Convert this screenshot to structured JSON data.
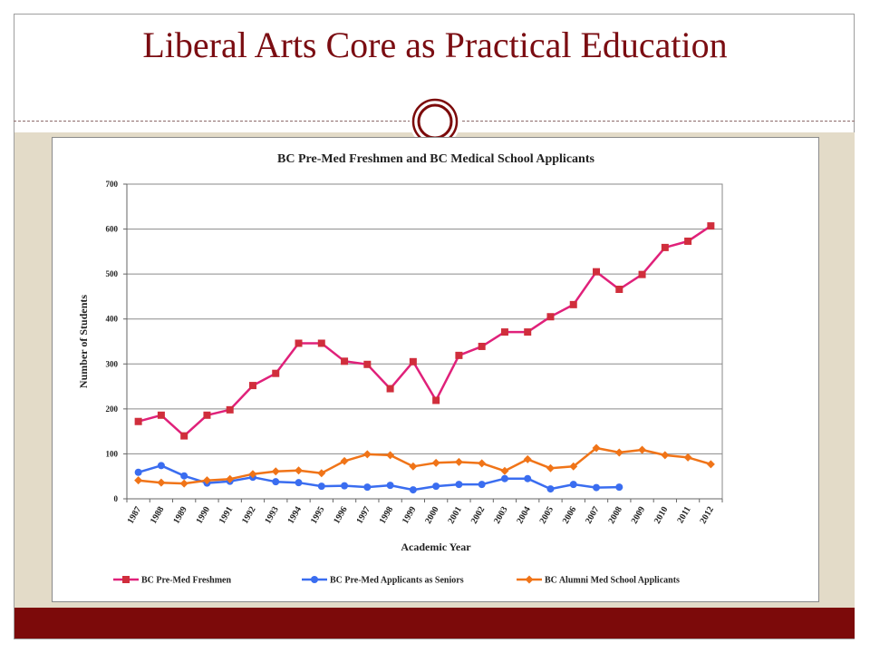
{
  "slide": {
    "title": "Liberal Arts Core as Practical Education"
  },
  "colors": {
    "title": "#7b0d12",
    "band": "#e3dbc8",
    "bar": "#7c0a0a",
    "series1": "#e0217a",
    "series1_marker": "#d02e3c",
    "series2": "#3a6df0",
    "series3": "#f07418"
  },
  "chart_data": {
    "type": "line",
    "title": "BC Pre-Med Freshmen and BC Medical School Applicants",
    "xlabel": "Academic Year",
    "ylabel": "Number of Students",
    "ylim": [
      0,
      700
    ],
    "yticks": [
      0,
      100,
      200,
      300,
      400,
      500,
      600,
      700
    ],
    "grid": true,
    "legend": "bottom",
    "categories": [
      "1987",
      "1988",
      "1989",
      "1990",
      "1991",
      "1992",
      "1993",
      "1994",
      "1995",
      "1996",
      "1997",
      "1998",
      "1999",
      "2000",
      "2001",
      "2002",
      "2003",
      "2004",
      "2005",
      "2006",
      "2007",
      "2008",
      "2009",
      "2010",
      "2011",
      "2012"
    ],
    "series": [
      {
        "name": "BC Pre-Med Freshmen",
        "marker": "square",
        "values": [
          172,
          186,
          140,
          186,
          198,
          252,
          279,
          346,
          346,
          306,
          299,
          245,
          305,
          219,
          319,
          339,
          371,
          371,
          405,
          432,
          505,
          466,
          499,
          559,
          573,
          607
        ]
      },
      {
        "name": "BC Pre-Med Applicants as Seniors",
        "marker": "circle",
        "values": [
          59,
          74,
          51,
          35,
          39,
          48,
          38,
          36,
          28,
          29,
          26,
          30,
          20,
          28,
          32,
          32,
          45,
          45,
          22,
          32,
          25,
          26,
          null,
          null,
          null,
          null
        ]
      },
      {
        "name": "BC Alumni Med School Applicants",
        "marker": "diamond",
        "values": [
          41,
          36,
          34,
          41,
          44,
          55,
          61,
          63,
          57,
          84,
          99,
          97,
          72,
          80,
          82,
          79,
          62,
          88,
          68,
          72,
          113,
          103,
          109,
          97,
          92,
          77
        ]
      }
    ]
  }
}
